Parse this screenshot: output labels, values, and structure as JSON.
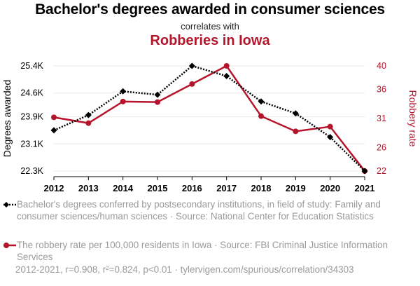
{
  "title": "Bachelor's degrees awarded in consumer sciences",
  "subtitle": "correlates with",
  "title2": "Robberies in Iowa",
  "colors": {
    "series1": "#000000",
    "series2": "#b5152b",
    "legend_text": "#9a9a9a"
  },
  "chart_data": {
    "type": "line",
    "x": [
      2012,
      2013,
      2014,
      2015,
      2016,
      2017,
      2018,
      2019,
      2020,
      2021
    ],
    "x_tick_labels": [
      "2012",
      "2013",
      "2014",
      "2015",
      "2016",
      "2017",
      "2018",
      "2019",
      "2020",
      "2021"
    ],
    "ylabel_left": "Degrees awarded",
    "ylabel_right": "Robbery rate",
    "y_left_ticks": [
      22300,
      23100,
      23900,
      24600,
      25400
    ],
    "y_left_tick_labels": [
      "22.3K",
      "23.1K",
      "23.9K",
      "24.6K",
      "25.4K"
    ],
    "y_left_range": [
      22300,
      25400
    ],
    "y_right_ticks": [
      22,
      26,
      31,
      36,
      40
    ],
    "y_right_tick_labels": [
      "22",
      "26",
      "31",
      "36",
      "40"
    ],
    "y_right_range": [
      22,
      40
    ],
    "grid": true,
    "series": [
      {
        "name": "Bachelor's degrees conferred by postsecondary institutions, in field of study: Family and consumer sciences/human sciences · Source: National Center for Education Statistics",
        "axis": "left",
        "style": "dotted",
        "marker": "diamond",
        "values": [
          23500,
          23950,
          24650,
          24550,
          25400,
          25100,
          24350,
          24000,
          23300,
          22300
        ]
      },
      {
        "name": "The robbery rate per 100,000 residents in Iowa · Source: FBI Criminal Justice Information Services",
        "axis": "right",
        "style": "solid",
        "marker": "circle",
        "values": [
          31.2,
          30.2,
          33.9,
          33.8,
          36.9,
          40.0,
          31.4,
          28.8,
          29.6,
          22.0
        ]
      }
    ]
  },
  "footer": "2012-2021, r=0.908, r²=0.824, p<0.01 · tylervigen.com/spurious/correlation/34303"
}
